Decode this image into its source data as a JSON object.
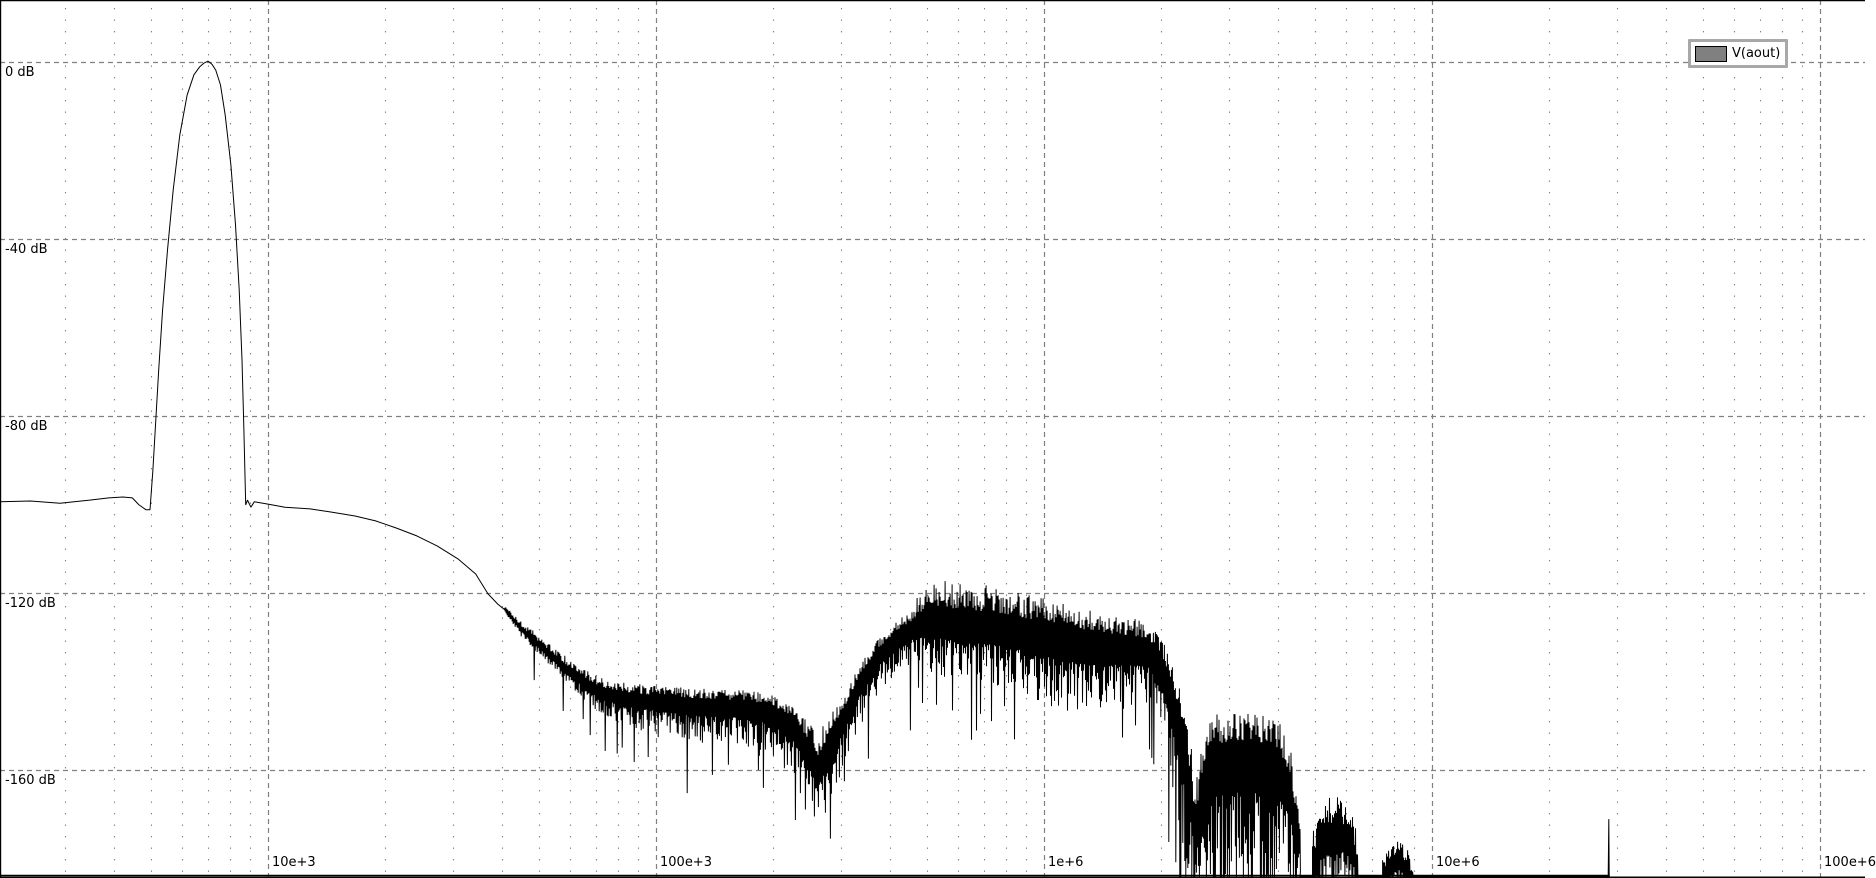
{
  "window": {
    "background": "#ffffff"
  },
  "chart_data": {
    "type": "line",
    "title": "",
    "legend_position": "top-right",
    "grid": {
      "major_style": "dashed",
      "minor_style": "dotted",
      "color": "#808080",
      "minor_vertical_only": true
    },
    "legend": [
      {
        "label": "V(aout)",
        "swatch_color": "#808080",
        "line_color": "#000000"
      }
    ],
    "x_axis": {
      "scale": "log",
      "unit": "Hz",
      "tick_labels": [
        "10e+3",
        "100e+3",
        "1e+6",
        "10e+6",
        "100e+6"
      ],
      "tick_values": [
        10000,
        100000,
        1000000,
        10000000,
        100000000
      ],
      "min": 2040,
      "max": 131000000,
      "data_end": 28700000
    },
    "y_axis": {
      "unit": "dB",
      "tick_labels": [
        "0 dB",
        "-40 dB",
        "-80 dB",
        "-120 dB",
        "-160 dB"
      ],
      "tick_values": [
        0,
        -40,
        -80,
        -120,
        -160
      ],
      "min": -184.4,
      "max": 14
    },
    "series": [
      {
        "name": "V(aout)",
        "color": "#000000",
        "description": "FFT magnitude: 0 dB fundamental at ~7 kHz over a -99 dB floor; noise-shaped spectrum with shaped humps and notches, data ends ~28.7 MHz",
        "peak": {
          "frequency": 7000,
          "db": 0
        },
        "segments": [
          {
            "type": "smooth",
            "points": [
              [
                2040,
                -99.4
              ],
              [
                2440,
                -99.2
              ],
              [
                2910,
                -99.7
              ],
              [
                3470,
                -99.0
              ],
              [
                3890,
                -98.5
              ],
              [
                4230,
                -98.3
              ],
              [
                4470,
                -98.5
              ],
              [
                4650,
                -100.1
              ],
              [
                4850,
                -101.2
              ]
            ]
          },
          {
            "type": "smooth",
            "points": [
              [
                4965,
                -101.2
              ],
              [
                5051,
                -92.2
              ],
              [
                5139,
                -80.9
              ],
              [
                5229,
                -69.6
              ],
              [
                5351,
                -56.0
              ],
              [
                5507,
                -42.5
              ],
              [
                5698,
                -28.9
              ],
              [
                5925,
                -16.5
              ],
              [
                6189,
                -7.5
              ],
              [
                6441,
                -2.9
              ],
              [
                6663,
                -1.1
              ],
              [
                6852,
                -0.2
              ],
              [
                7009,
                0.2
              ],
              [
                7169,
                -0.5
              ],
              [
                7333,
                -1.8
              ],
              [
                7542,
                -5.2
              ],
              [
                7757,
                -12.0
              ],
              [
                8022,
                -23.3
              ],
              [
                8247,
                -36.8
              ],
              [
                8431,
                -51.5
              ],
              [
                8572,
                -67.3
              ],
              [
                8667,
                -83.2
              ],
              [
                8763,
                -100.1
              ]
            ]
          },
          {
            "type": "smooth",
            "points": [
              [
                8852,
                -99.0
              ],
              [
                9034,
                -100.6
              ],
              [
                9217,
                -99.4
              ],
              [
                10000,
                -99.9
              ],
              [
                11060,
                -100.6
              ],
              [
                12830,
                -101.0
              ],
              [
                14520,
                -101.7
              ],
              [
                16760,
                -102.6
              ],
              [
                18940,
                -103.7
              ],
              [
                21400,
                -105.3
              ],
              [
                24180,
                -107.1
              ],
              [
                27330,
                -109.4
              ],
              [
                30880,
                -112.3
              ],
              [
                34300,
                -115.7
              ],
              [
                36900,
                -120.2
              ],
              [
                39100,
                -122.5
              ],
              [
                40760,
                -123.8
              ]
            ]
          },
          {
            "type": "noise",
            "deep_prob": 0.06,
            "deep_db": 14,
            "env": [
              [
                40760,
                -123.8,
                1.1,
                1.1
              ],
              [
                44620,
                -127.9,
                1.8,
                1.8
              ],
              [
                48770,
                -131.1,
                2.3,
                2.3
              ],
              [
                53300,
                -134.0,
                2.5,
                2.7
              ],
              [
                58260,
                -136.9,
                2.7,
                3.2
              ],
              [
                63680,
                -139.6,
                2.9,
                3.6
              ],
              [
                71800,
                -142.4,
                3.2,
                5.7
              ],
              [
                85700,
                -143.7,
                3.4,
                6.8
              ],
              [
                102500,
                -144.4,
                3.4,
                7.9
              ],
              [
                129800,
                -145.1,
                3.6,
                9.0
              ]
            ]
          },
          {
            "type": "noise",
            "deep_prob": 0.07,
            "deep_db": 16,
            "env": [
              [
                129800,
                -145.1,
                3.6,
                9.0
              ],
              [
                165000,
                -145.5,
                3.6,
                9.0
              ],
              [
                197000,
                -146.4,
                3.6,
                10.2
              ],
              [
                228000,
                -149.8,
                4.1,
                13.6
              ],
              [
                262000,
                -159.5,
                7.9,
                13.6
              ],
              [
                284000,
                -152.8,
                5.7,
                13.6
              ],
              [
                307000,
                -146.9,
                4.1,
                11.3
              ],
              [
                338000,
                -139.2,
                3.6,
                10.2
              ],
              [
                378000,
                -133.3,
                3.4,
                9.0
              ],
              [
                428000,
                -128.8,
                3.2,
                9.0
              ],
              [
                468000,
                -127.0,
                3.2,
                10.2
              ]
            ]
          },
          {
            "type": "noise",
            "deep_prob": 0.05,
            "deep_db": 22,
            "env": [
              [
                468000,
                -127.0,
                7.0,
                10.2
              ],
              [
                542000,
                -126.6,
                9.5,
                12.4
              ],
              [
                645000,
                -127.0,
                9.5,
                13.6
              ],
              [
                771000,
                -127.9,
                9.0,
                13.6
              ],
              [
                1006000,
                -129.3,
                8.1,
                15.8
              ],
              [
                1240000,
                -130.6,
                7.2,
                18.1
              ],
              [
                1480000,
                -131.5,
                6.8,
                15.8
              ],
              [
                1720000,
                -132.0,
                6.3,
                13.6
              ],
              [
                1880000,
                -132.9,
                5.9,
                13.6
              ]
            ]
          },
          {
            "type": "noise",
            "deep_prob": 0.18,
            "deep_db": 30,
            "env": [
              [
                1880000,
                -132.9,
                5.9,
                13.6
              ],
              [
                2030000,
                -137.0,
                5.9,
                18.1
              ],
              [
                2150000,
                -143.1,
                6.8,
                24.9
              ],
              [
                2280000,
                -153.2,
                9.0,
                31.2
              ],
              [
                2390000,
                -166.8,
                13.6,
                17.6
              ],
              [
                2450000,
                -174.7,
                11.3,
                9.7
              ]
            ]
          },
          {
            "type": "noise",
            "deep_prob": 0.3,
            "deep_db": 30,
            "env": [
              [
                2450000,
                -174.7,
                11.3,
                9.7
              ],
              [
                2600000,
                -164.5,
                13.6,
                19.9
              ],
              [
                2760000,
                -158.2,
                10.8,
                26.2
              ],
              [
                3200000,
                -156.6,
                9.5,
                27.8
              ],
              [
                3720000,
                -157.3,
                9.5,
                27.1
              ],
              [
                4050000,
                -159.5,
                10.2,
                24.9
              ],
              [
                4300000,
                -164.5,
                11.3,
                19.9
              ],
              [
                4570000,
                -177.6,
                9.0,
                6.8
              ]
            ]
          },
          {
            "type": "noise",
            "deep_prob": 0,
            "deep_db": 0,
            "env": [
              [
                4570000,
                -189.4,
                3.4,
                2.3
              ],
              [
                4920000,
                -189.4,
                3.4,
                2.3
              ]
            ]
          },
          {
            "type": "noise",
            "deep_prob": 0.15,
            "deep_db": 10,
            "env": [
              [
                4920000,
                -184.9,
                11.3,
                4.5
              ],
              [
                5170000,
                -176.9,
                10.2,
                9.0
              ],
              [
                5650000,
                -174.7,
                9.0,
                11.3
              ],
              [
                6090000,
                -176.3,
                9.0,
                9.0
              ],
              [
                6450000,
                -183.1,
                7.9,
                3.4
              ]
            ]
          },
          {
            "type": "noise",
            "deep_prob": 0,
            "deep_db": 0,
            "env": [
              [
                6450000,
                -189.4,
                2.7,
                1.8
              ],
              [
                7460000,
                -189.4,
                2.7,
                1.8
              ]
            ]
          },
          {
            "type": "noise",
            "deep_prob": 0.1,
            "deep_db": 6,
            "env": [
              [
                7460000,
                -186.0,
                7.9,
                2.3
              ],
              [
                7750000,
                -182.2,
                5.7,
                4.5
              ],
              [
                8220000,
                -180.8,
                5.0,
                5.7
              ],
              [
                8620000,
                -183.1,
                5.7,
                3.4
              ],
              [
                8920000,
                -187.1,
                4.5,
                1.8
              ]
            ]
          },
          {
            "type": "noise",
            "deep_prob": 0,
            "deep_db": 0,
            "env": [
              [
                8920000,
                -187.8,
                2.0,
                1.4
              ],
              [
                27800000,
                -187.8,
                2.0,
                1.4
              ]
            ]
          },
          {
            "type": "smooth",
            "points": [
              [
                27800000,
                -184.2
              ],
              [
                28450000,
                -184.2
              ],
              [
                28550000,
                -171.1
              ],
              [
                28620000,
                -184.4
              ],
              [
                28700000,
                -184.4
              ]
            ]
          }
        ]
      }
    ]
  }
}
